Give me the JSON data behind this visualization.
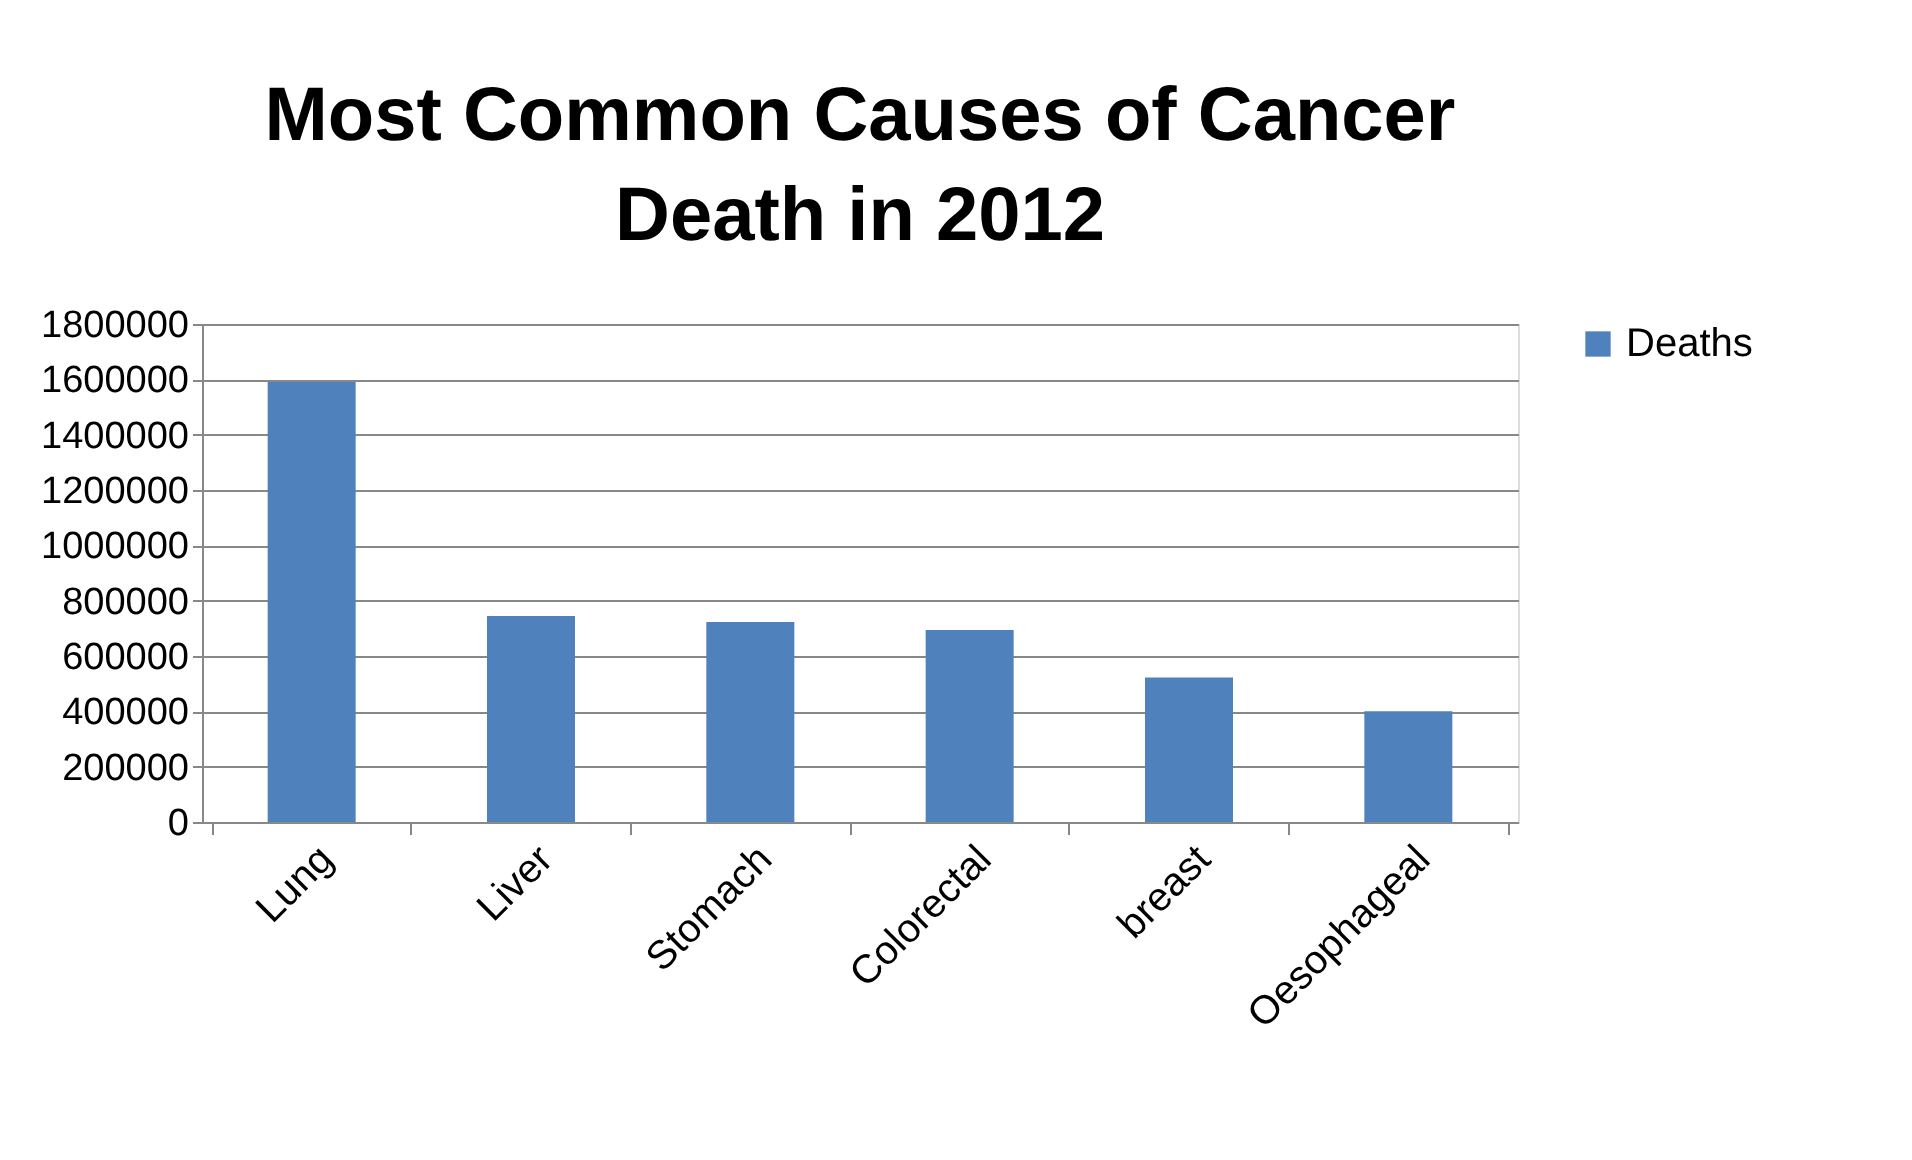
{
  "chart_data": {
    "type": "bar",
    "title": "Most Common Causes of Cancer Death in 2012",
    "categories": [
      "Lung",
      "Liver",
      "Stomach",
      "Colorectal",
      "breast",
      "Oesophageal"
    ],
    "series": [
      {
        "name": "Deaths",
        "color": "#4f81bd",
        "values": [
          1590000,
          745000,
          723000,
          694000,
          522000,
          400000
        ]
      }
    ],
    "ylim": [
      0,
      1800000
    ],
    "yticks": [
      0,
      200000,
      400000,
      600000,
      800000,
      1000000,
      1200000,
      1400000,
      1600000,
      1800000
    ],
    "grid": "y",
    "legend": "right"
  }
}
